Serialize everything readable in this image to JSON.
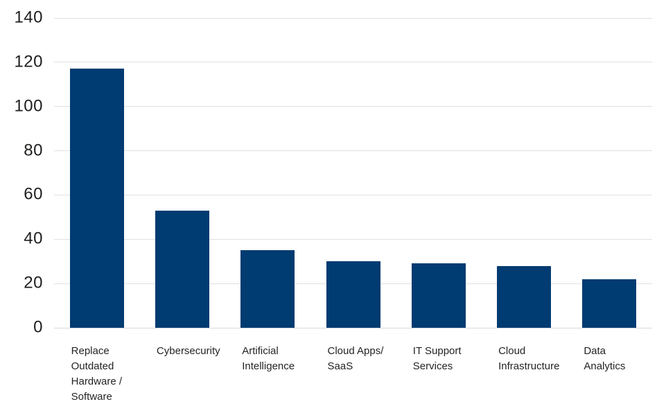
{
  "chart_data": {
    "type": "bar",
    "categories": [
      "Replace Outdated Hardware / Software",
      "Cybersecurity",
      "Artificial Intelligence",
      "Cloud Apps/ SaaS",
      "IT Support Services",
      "Cloud Infrastructure",
      "Data Analytics"
    ],
    "category_labels_wrapped": [
      "Replace\nOutdated\nHardware /\nSoftware",
      "Cybersecurity",
      "Artificial\nIntelligence",
      "Cloud Apps/\nSaaS",
      "IT Support\nServices",
      "Cloud\nInfrastructure",
      "Data\nAnalytics"
    ],
    "values": [
      117,
      53,
      35,
      30,
      29,
      28,
      22
    ],
    "y_ticks": [
      140,
      120,
      100,
      80,
      60,
      40,
      20,
      0
    ],
    "ylim": [
      0,
      140
    ],
    "grid": true,
    "legend": false,
    "bar_color": "#003b71",
    "gridline_color": "#e0e0e0",
    "axis_text_color": "#252423",
    "background_color": "#ffffff"
  }
}
